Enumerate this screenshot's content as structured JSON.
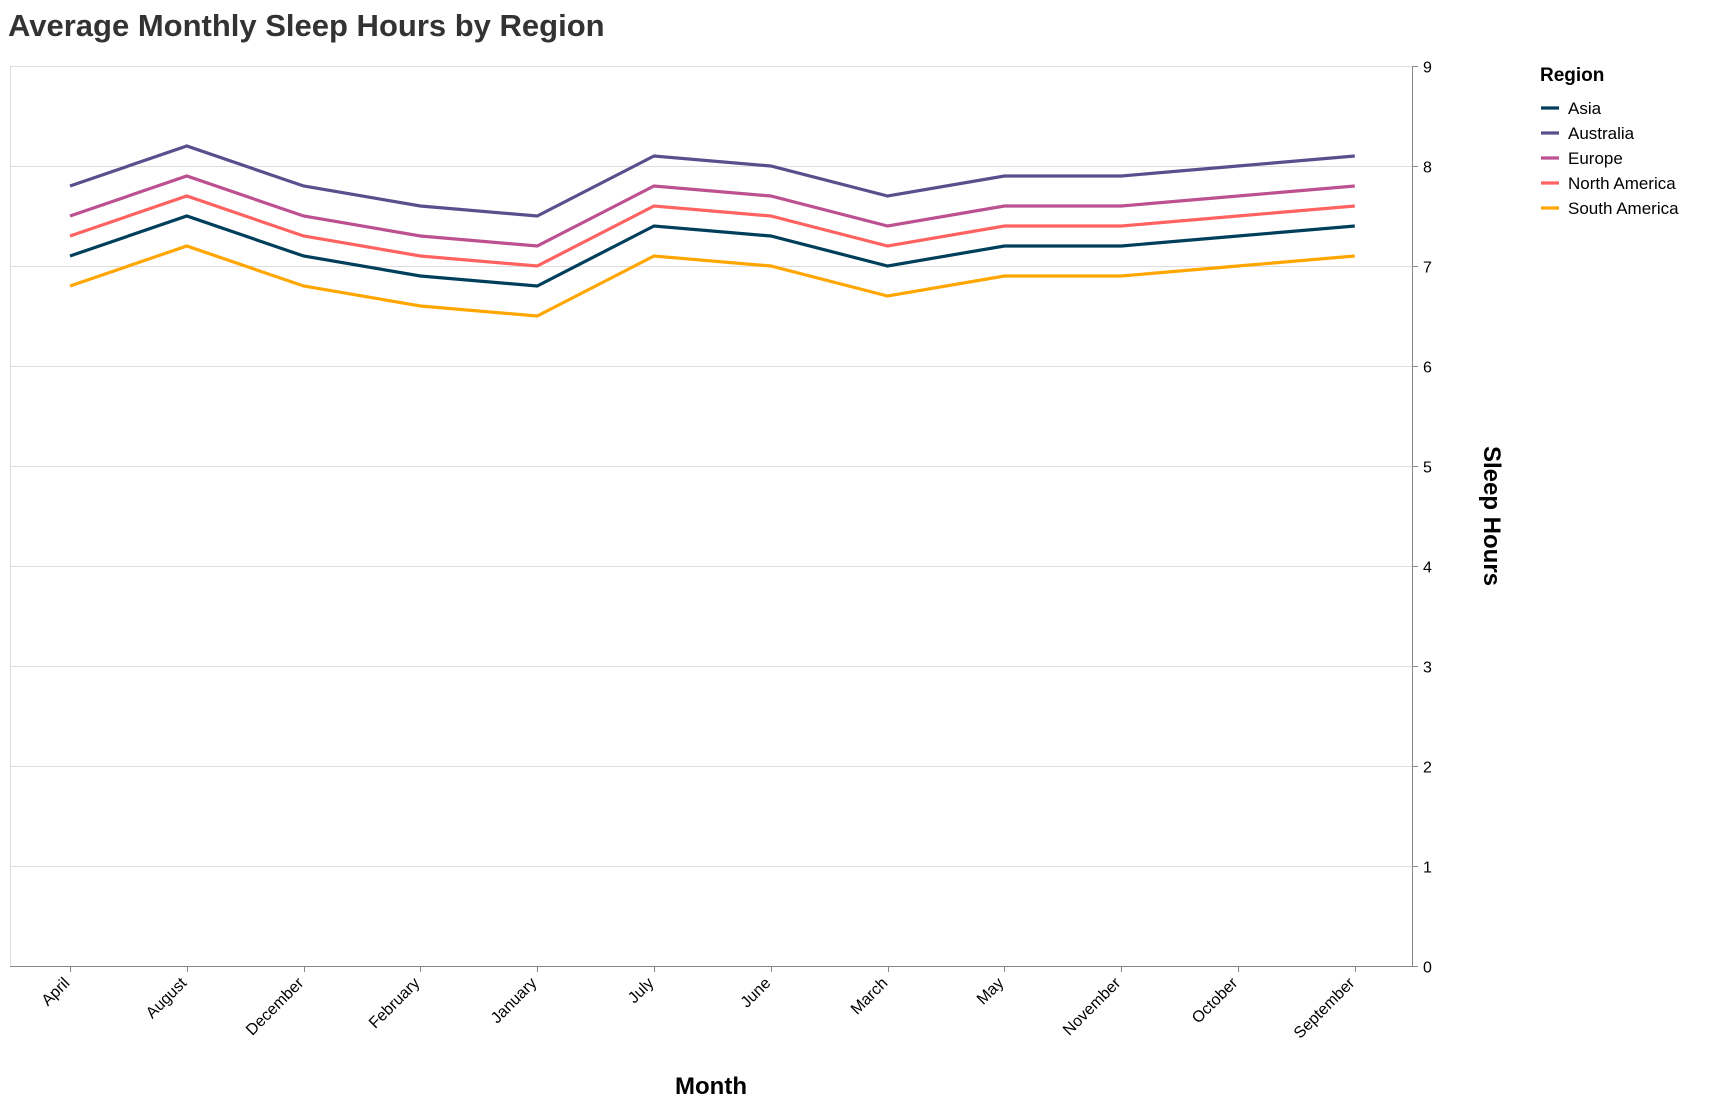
{
  "chart_data": {
    "type": "line",
    "title": "Average Monthly Sleep Hours by Region",
    "xlabel": "Month",
    "ylabel": "Sleep Hours",
    "ylim": [
      0,
      9
    ],
    "y_ticks": [
      0,
      1,
      2,
      3,
      4,
      5,
      6,
      7,
      8,
      9
    ],
    "y_axis_side": "right",
    "grid": true,
    "legend_title": "Region",
    "legend_position": "top-right",
    "categories": [
      "April",
      "August",
      "December",
      "February",
      "January",
      "July",
      "June",
      "March",
      "May",
      "November",
      "October",
      "September"
    ],
    "series": [
      {
        "name": "Asia",
        "color": "#003f5c",
        "values": [
          7.1,
          7.5,
          7.1,
          6.9,
          6.8,
          7.4,
          7.3,
          7.0,
          7.2,
          7.2,
          7.3,
          7.4
        ]
      },
      {
        "name": "Australia",
        "color": "#58508d",
        "values": [
          7.8,
          8.2,
          7.8,
          7.6,
          7.5,
          8.1,
          8.0,
          7.7,
          7.9,
          7.9,
          8.0,
          8.1
        ]
      },
      {
        "name": "Europe",
        "color": "#bc5090",
        "values": [
          7.5,
          7.9,
          7.5,
          7.3,
          7.2,
          7.8,
          7.7,
          7.4,
          7.6,
          7.6,
          7.7,
          7.8
        ]
      },
      {
        "name": "North America",
        "color": "#ff6361",
        "values": [
          7.3,
          7.7,
          7.3,
          7.1,
          7.0,
          7.6,
          7.5,
          7.2,
          7.4,
          7.4,
          7.5,
          7.6
        ]
      },
      {
        "name": "South America",
        "color": "#ffa600",
        "values": [
          6.8,
          7.2,
          6.8,
          6.6,
          6.5,
          7.1,
          7.0,
          6.7,
          6.9,
          6.9,
          7.0,
          7.1
        ]
      }
    ]
  }
}
